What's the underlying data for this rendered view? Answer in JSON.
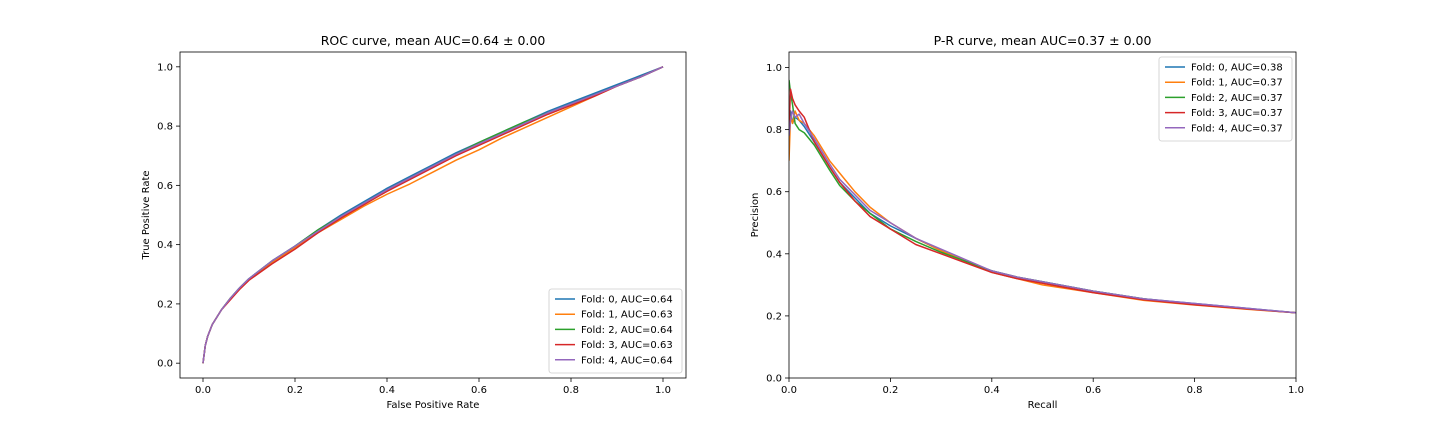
{
  "chart_data": [
    {
      "type": "line",
      "title": "ROC curve, mean AUC=0.64 ± 0.00",
      "xlabel": "False Positive Rate",
      "ylabel": "True Positive Rate",
      "xlim": [
        -0.05,
        1.05
      ],
      "ylim": [
        -0.05,
        1.05
      ],
      "xticks": [
        0.0,
        0.2,
        0.4,
        0.6,
        0.8,
        1.0
      ],
      "yticks": [
        0.0,
        0.2,
        0.4,
        0.6,
        0.8,
        1.0
      ],
      "xtick_labels": [
        "0.0",
        "0.2",
        "0.4",
        "0.6",
        "0.8",
        "1.0"
      ],
      "ytick_labels": [
        "0.0",
        "0.2",
        "0.4",
        "0.6",
        "0.8",
        "1.0"
      ],
      "grid": false,
      "legend_position": "lower-right",
      "series": [
        {
          "name": "Fold: 0, AUC=0.64",
          "color": "#1f77b4",
          "x": [
            0,
            0.005,
            0.01,
            0.02,
            0.04,
            0.06,
            0.08,
            0.1,
            0.15,
            0.2,
            0.25,
            0.3,
            0.35,
            0.4,
            0.45,
            0.5,
            0.55,
            0.6,
            0.65,
            0.7,
            0.75,
            0.8,
            0.85,
            0.9,
            0.95,
            1.0
          ],
          "y": [
            0,
            0.06,
            0.09,
            0.13,
            0.18,
            0.22,
            0.255,
            0.285,
            0.345,
            0.395,
            0.45,
            0.5,
            0.545,
            0.59,
            0.63,
            0.67,
            0.71,
            0.745,
            0.78,
            0.815,
            0.85,
            0.88,
            0.91,
            0.94,
            0.97,
            1.0
          ]
        },
        {
          "name": "Fold: 1, AUC=0.63",
          "color": "#ff7f0e",
          "x": [
            0,
            0.005,
            0.01,
            0.02,
            0.04,
            0.06,
            0.08,
            0.1,
            0.15,
            0.2,
            0.25,
            0.3,
            0.35,
            0.4,
            0.45,
            0.5,
            0.55,
            0.6,
            0.65,
            0.7,
            0.75,
            0.8,
            0.85,
            0.9,
            0.95,
            1.0
          ],
          "y": [
            0,
            0.06,
            0.09,
            0.13,
            0.18,
            0.22,
            0.25,
            0.28,
            0.34,
            0.39,
            0.44,
            0.485,
            0.53,
            0.57,
            0.605,
            0.645,
            0.685,
            0.72,
            0.76,
            0.795,
            0.83,
            0.865,
            0.9,
            0.935,
            0.965,
            1.0
          ]
        },
        {
          "name": "Fold: 2, AUC=0.64",
          "color": "#2ca02c",
          "x": [
            0,
            0.005,
            0.01,
            0.02,
            0.04,
            0.06,
            0.08,
            0.1,
            0.15,
            0.2,
            0.25,
            0.3,
            0.35,
            0.4,
            0.45,
            0.5,
            0.55,
            0.6,
            0.65,
            0.7,
            0.75,
            0.8,
            0.85,
            0.9,
            0.95,
            1.0
          ],
          "y": [
            0,
            0.06,
            0.09,
            0.13,
            0.18,
            0.22,
            0.255,
            0.285,
            0.345,
            0.395,
            0.45,
            0.495,
            0.54,
            0.585,
            0.625,
            0.665,
            0.705,
            0.745,
            0.78,
            0.815,
            0.845,
            0.875,
            0.905,
            0.935,
            0.965,
            1.0
          ]
        },
        {
          "name": "Fold: 3, AUC=0.63",
          "color": "#d62728",
          "x": [
            0,
            0.005,
            0.01,
            0.02,
            0.04,
            0.06,
            0.08,
            0.1,
            0.15,
            0.2,
            0.25,
            0.3,
            0.35,
            0.4,
            0.45,
            0.5,
            0.55,
            0.6,
            0.65,
            0.7,
            0.75,
            0.8,
            0.85,
            0.9,
            0.95,
            1.0
          ],
          "y": [
            0,
            0.06,
            0.09,
            0.13,
            0.18,
            0.215,
            0.25,
            0.28,
            0.335,
            0.385,
            0.44,
            0.49,
            0.535,
            0.58,
            0.62,
            0.66,
            0.7,
            0.735,
            0.77,
            0.805,
            0.84,
            0.87,
            0.9,
            0.935,
            0.965,
            1.0
          ]
        },
        {
          "name": "Fold: 4, AUC=0.64",
          "color": "#9467bd",
          "x": [
            0,
            0.005,
            0.01,
            0.02,
            0.04,
            0.06,
            0.08,
            0.1,
            0.15,
            0.2,
            0.25,
            0.3,
            0.35,
            0.4,
            0.45,
            0.5,
            0.55,
            0.6,
            0.65,
            0.7,
            0.75,
            0.8,
            0.85,
            0.9,
            0.95,
            1.0
          ],
          "y": [
            0,
            0.06,
            0.09,
            0.13,
            0.18,
            0.22,
            0.255,
            0.285,
            0.345,
            0.395,
            0.445,
            0.495,
            0.54,
            0.585,
            0.625,
            0.665,
            0.705,
            0.74,
            0.775,
            0.81,
            0.845,
            0.875,
            0.905,
            0.935,
            0.965,
            1.0
          ]
        }
      ]
    },
    {
      "type": "line",
      "title": "P-R curve, mean AUC=0.37 ± 0.00",
      "xlabel": "Recall",
      "ylabel": "Precision",
      "xlim": [
        0.0,
        1.0
      ],
      "ylim": [
        0.0,
        1.05
      ],
      "xticks": [
        0.0,
        0.2,
        0.4,
        0.6,
        0.8,
        1.0
      ],
      "yticks": [
        0.0,
        0.2,
        0.4,
        0.6,
        0.8,
        1.0
      ],
      "xtick_labels": [
        "0.0",
        "0.2",
        "0.4",
        "0.6",
        "0.8",
        "1.0"
      ],
      "ytick_labels": [
        "0.0",
        "0.2",
        "0.4",
        "0.6",
        "0.8",
        "1.0"
      ],
      "grid": false,
      "legend_position": "upper-right",
      "series": [
        {
          "name": "Fold: 0, AUC=0.38",
          "color": "#1f77b4",
          "x": [
            0,
            0.003,
            0.007,
            0.012,
            0.02,
            0.03,
            0.05,
            0.08,
            0.1,
            0.13,
            0.16,
            0.2,
            0.25,
            0.3,
            0.35,
            0.4,
            0.45,
            0.5,
            0.6,
            0.7,
            0.8,
            0.9,
            1.0
          ],
          "y": [
            0.78,
            0.86,
            0.82,
            0.84,
            0.83,
            0.81,
            0.76,
            0.68,
            0.63,
            0.58,
            0.53,
            0.49,
            0.45,
            0.41,
            0.375,
            0.345,
            0.325,
            0.31,
            0.28,
            0.255,
            0.24,
            0.225,
            0.21
          ]
        },
        {
          "name": "Fold: 1, AUC=0.37",
          "color": "#ff7f0e",
          "x": [
            0,
            0.003,
            0.007,
            0.012,
            0.02,
            0.03,
            0.05,
            0.08,
            0.1,
            0.13,
            0.16,
            0.2,
            0.25,
            0.3,
            0.35,
            0.4,
            0.45,
            0.5,
            0.6,
            0.7,
            0.8,
            0.9,
            1.0
          ],
          "y": [
            0.7,
            0.84,
            0.82,
            0.86,
            0.83,
            0.82,
            0.78,
            0.7,
            0.66,
            0.6,
            0.55,
            0.5,
            0.45,
            0.41,
            0.375,
            0.34,
            0.32,
            0.3,
            0.275,
            0.25,
            0.235,
            0.222,
            0.21
          ]
        },
        {
          "name": "Fold: 2, AUC=0.37",
          "color": "#2ca02c",
          "x": [
            0,
            0.003,
            0.007,
            0.012,
            0.02,
            0.03,
            0.05,
            0.08,
            0.1,
            0.13,
            0.16,
            0.2,
            0.25,
            0.3,
            0.35,
            0.4,
            0.45,
            0.5,
            0.6,
            0.7,
            0.8,
            0.9,
            1.0
          ],
          "y": [
            0.96,
            0.92,
            0.88,
            0.82,
            0.8,
            0.79,
            0.75,
            0.67,
            0.62,
            0.57,
            0.53,
            0.48,
            0.44,
            0.405,
            0.375,
            0.345,
            0.325,
            0.31,
            0.28,
            0.255,
            0.238,
            0.224,
            0.21
          ]
        },
        {
          "name": "Fold: 3, AUC=0.37",
          "color": "#d62728",
          "x": [
            0,
            0.003,
            0.007,
            0.012,
            0.02,
            0.03,
            0.05,
            0.08,
            0.1,
            0.13,
            0.16,
            0.2,
            0.25,
            0.3,
            0.35,
            0.4,
            0.45,
            0.5,
            0.6,
            0.7,
            0.8,
            0.9,
            1.0
          ],
          "y": [
            0.8,
            0.93,
            0.9,
            0.88,
            0.86,
            0.84,
            0.76,
            0.68,
            0.63,
            0.57,
            0.52,
            0.48,
            0.43,
            0.4,
            0.37,
            0.34,
            0.32,
            0.305,
            0.275,
            0.252,
            0.236,
            0.223,
            0.21
          ]
        },
        {
          "name": "Fold: 4, AUC=0.37",
          "color": "#9467bd",
          "x": [
            0,
            0.003,
            0.007,
            0.012,
            0.02,
            0.03,
            0.05,
            0.08,
            0.1,
            0.13,
            0.16,
            0.2,
            0.25,
            0.3,
            0.35,
            0.4,
            0.45,
            0.5,
            0.6,
            0.7,
            0.8,
            0.9,
            1.0
          ],
          "y": [
            0.78,
            0.83,
            0.86,
            0.84,
            0.85,
            0.82,
            0.77,
            0.69,
            0.64,
            0.59,
            0.54,
            0.5,
            0.45,
            0.415,
            0.38,
            0.345,
            0.325,
            0.31,
            0.28,
            0.255,
            0.24,
            0.225,
            0.21
          ]
        }
      ]
    }
  ]
}
